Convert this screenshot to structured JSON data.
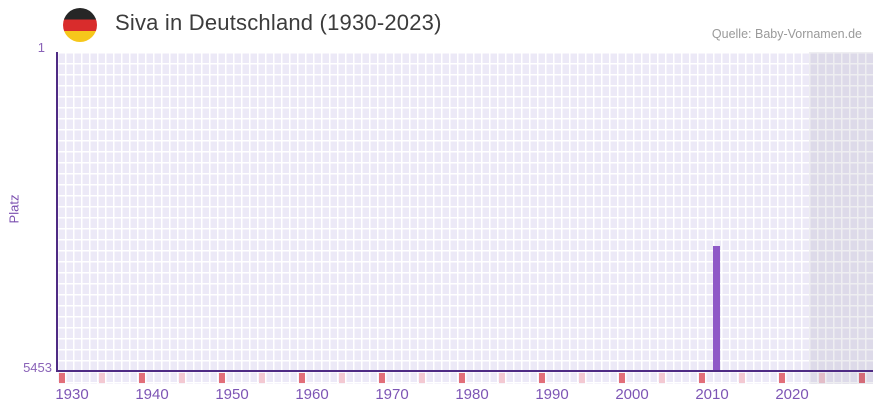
{
  "header": {
    "title": "Siva in Deutschland (1930-2023)",
    "source": "Quelle: Baby-Vornamen.de",
    "flag_icon": "germany-flag-circle"
  },
  "chart_data": {
    "type": "bar",
    "title": "Siva in Deutschland (1930-2023)",
    "name": "Siva",
    "region": "Deutschland",
    "ylabel": "Platz",
    "y_axis": {
      "inverted": true,
      "min": 1,
      "max": 5453,
      "top_label": "1",
      "bottom_label": "5453"
    },
    "x_axis": {
      "first_year": 1930,
      "last_year": 2023,
      "ticks": [
        {
          "year": 1930,
          "label": "1930"
        },
        {
          "year": 1940,
          "label": "1940"
        },
        {
          "year": 1950,
          "label": "1950"
        },
        {
          "year": 1960,
          "label": "1960"
        },
        {
          "year": 1970,
          "label": "1970"
        },
        {
          "year": 1980,
          "label": "1980"
        },
        {
          "year": 1990,
          "label": "1990"
        },
        {
          "year": 2000,
          "label": "2000"
        },
        {
          "year": 2010,
          "label": "2010"
        },
        {
          "year": 2020,
          "label": "2020"
        }
      ]
    },
    "series": [
      {
        "name": "Platz",
        "points": [
          {
            "year": 2012,
            "rank": 3320
          }
        ]
      }
    ],
    "axis_marks": {
      "decade_years": [
        1930,
        1940,
        1950,
        1960,
        1970,
        1980,
        1990,
        2000,
        2010,
        2020,
        2030
      ],
      "half_decade_years": [
        1935,
        1945,
        1955,
        1965,
        1975,
        1985,
        1995,
        2005,
        2015,
        2025
      ]
    },
    "grid": {
      "column_width_years": 1,
      "rows": 29,
      "on": true
    },
    "colors": {
      "bar": "#8e59c7",
      "axis": "#4e2b84",
      "grid_cell": "#ece9f7",
      "grid_line": "#ffffff",
      "decade_mark": "#e26e79",
      "half_decade_mark": "#f3c9d2",
      "tick_label": "#7d55b5",
      "title_text": "#3c3c3c",
      "source_text": "#9a9a9a",
      "out_of_range_overlay": "rgba(90,85,115,0.10)"
    }
  }
}
